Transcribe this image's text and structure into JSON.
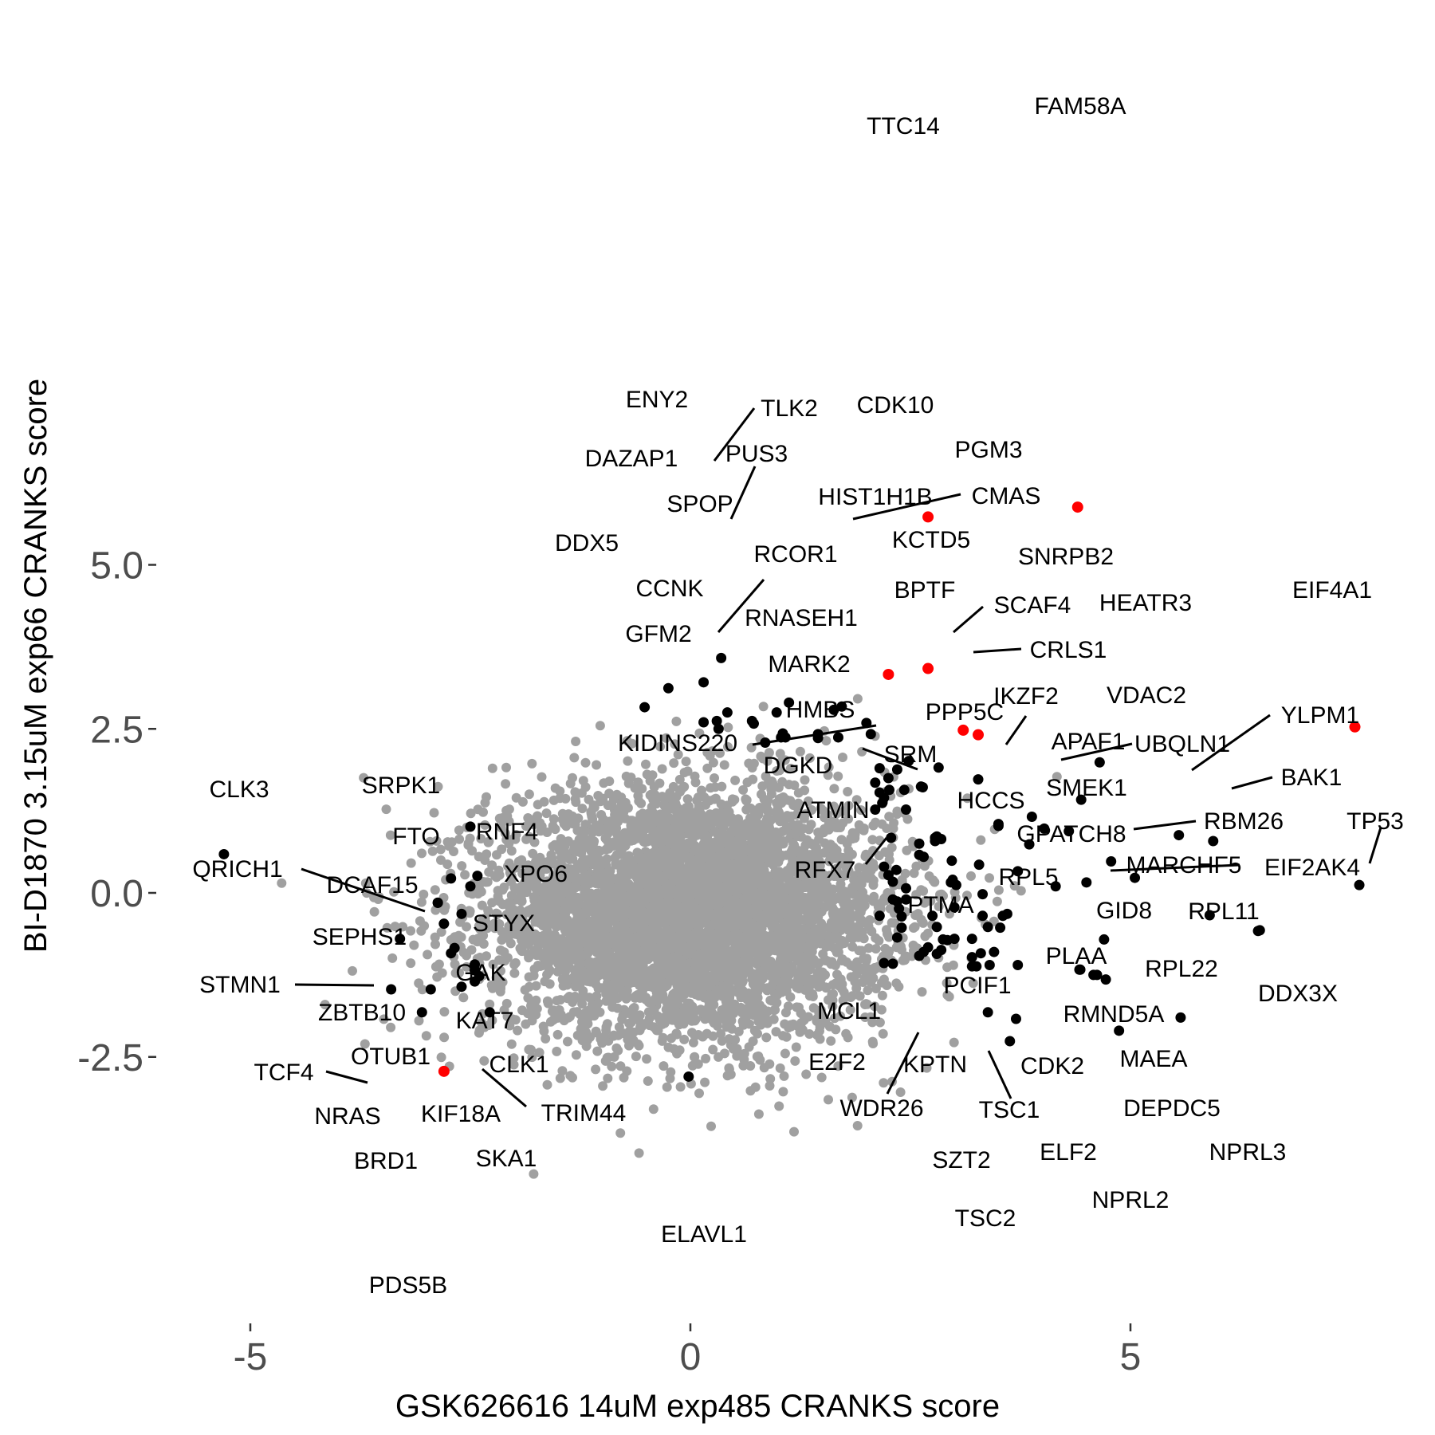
{
  "chart_data": {
    "type": "scatter",
    "xlabel": "GSK626616 14uM exp485 CRANKS score",
    "ylabel": "BI-D1870 3.15uM exp66 CRANKS score",
    "xlim": [
      -6.2,
      8.35
    ],
    "ylim": [
      -3.2,
      6.15
    ],
    "x_ticks": [
      -5,
      0,
      5
    ],
    "x_tick_labels": [
      "-5",
      "0",
      "5"
    ],
    "y_ticks": [
      -2.5,
      0,
      2.5,
      5
    ],
    "y_tick_labels": [
      "-2.5",
      "0.0",
      "2.5",
      "5.0"
    ],
    "grid": false,
    "background_cloud": {
      "description_color": "#a0a0a0",
      "center": [
        0.0,
        -0.3
      ],
      "spread": [
        1.15,
        0.95
      ],
      "count": 5200
    },
    "colors": {
      "background": "#a0a0a0",
      "hit": "#000000",
      "highlight": "#ff0000"
    },
    "highlighted": [
      {
        "label": "FAM58A",
        "x": 4.4,
        "y": 5.88
      },
      {
        "label": "TTC14",
        "x": 2.7,
        "y": 5.73
      },
      {
        "label": "CDK10",
        "x": 2.25,
        "y": 3.33
      },
      {
        "label": "PGM3",
        "x": 2.7,
        "y": 3.42
      },
      {
        "label": "SNRPB2",
        "x": 3.1,
        "y": 2.48
      },
      {
        "label": "",
        "x": 3.27,
        "y": 2.41
      },
      {
        "label": "EIF4A1",
        "x": 7.55,
        "y": 2.53
      },
      {
        "label": "PDS5B",
        "x": -2.8,
        "y": -2.72
      }
    ],
    "labeled_points": [
      {
        "label": "ENY2",
        "x": 0.35,
        "y": 3.58
      },
      {
        "label": "TLK2",
        "x": 0.15,
        "y": 3.21
      },
      {
        "label": "DAZAP1",
        "x": -0.25,
        "y": 3.12
      },
      {
        "label": "PUS3",
        "x": 0.42,
        "y": 2.75
      },
      {
        "label": "SPOP",
        "x": 0.3,
        "y": 2.62
      },
      {
        "label": "DDX5",
        "x": -0.52,
        "y": 2.83
      },
      {
        "label": "HIST1H1B",
        "x": 1.72,
        "y": 2.84
      },
      {
        "label": "CMAS",
        "x": 1.63,
        "y": 2.79
      },
      {
        "label": "KCTD5",
        "x": 2.0,
        "y": 2.59
      },
      {
        "label": "RCOR1",
        "x": 0.7,
        "y": 2.62
      },
      {
        "label": "CCNK",
        "x": 1.08,
        "y": 2.37
      },
      {
        "label": "BPTF",
        "x": 2.48,
        "y": 2.01
      },
      {
        "label": "GFM2",
        "x": 0.85,
        "y": 2.29
      },
      {
        "label": "RNASEH1",
        "x": 1.03,
        "y": 2.37
      },
      {
        "label": "SCAF4",
        "x": 2.82,
        "y": 1.91
      },
      {
        "label": "HEATR3",
        "x": 4.65,
        "y": 1.99
      },
      {
        "label": "CRLS1",
        "x": 3.27,
        "y": 1.73
      },
      {
        "label": "MARK2",
        "x": 2.1,
        "y": 1.68
      },
      {
        "label": "HMBS",
        "x": 2.15,
        "y": 1.53
      },
      {
        "label": "PPP5C",
        "x": 2.64,
        "y": 1.61
      },
      {
        "label": "IKZF2",
        "x": 3.5,
        "y": 1.02
      },
      {
        "label": "VDAC2",
        "x": 4.44,
        "y": 1.42
      },
      {
        "label": "KIDINS220",
        "x": 2.1,
        "y": 1.27
      },
      {
        "label": "DGKD",
        "x": 2.78,
        "y": 0.84
      },
      {
        "label": "SRM",
        "x": 2.78,
        "y": 0.79
      },
      {
        "label": "APAF1",
        "x": 3.88,
        "y": 1.16
      },
      {
        "label": "UBQLN1",
        "x": 4.02,
        "y": 0.98
      },
      {
        "label": "YLPM1",
        "x": 5.55,
        "y": 0.88
      },
      {
        "label": "SMEK1",
        "x": 4.3,
        "y": 0.94
      },
      {
        "label": "BAK1",
        "x": 5.94,
        "y": 0.79
      },
      {
        "label": "HCCS",
        "x": 3.85,
        "y": 0.74
      },
      {
        "label": "ATMIN",
        "x": 2.6,
        "y": 0.58
      },
      {
        "label": "RBM26",
        "x": 4.78,
        "y": 0.48
      },
      {
        "label": "GPATCH8",
        "x": 3.72,
        "y": 0.33
      },
      {
        "label": "TP53",
        "x": 7.6,
        "y": 0.12
      },
      {
        "label": "RFX7",
        "x": 2.25,
        "y": 0.27
      },
      {
        "label": "MARCHF5",
        "x": 5.05,
        "y": 0.23
      },
      {
        "label": "EIF2AK4",
        "x": 4.5,
        "y": 0.16
      },
      {
        "label": "RPL5",
        "x": 4.15,
        "y": 0.1
      },
      {
        "label": "PTMA",
        "x": 2.45,
        "y": -0.1
      },
      {
        "label": "GID8",
        "x": 3.6,
        "y": -0.32
      },
      {
        "label": "RPL11",
        "x": 5.9,
        "y": -0.34
      },
      {
        "label": "PLAA",
        "x": 3.52,
        "y": -0.53
      },
      {
        "label": "RPL22",
        "x": 6.45,
        "y": -0.58
      },
      {
        "label": "DDX3X",
        "x": 6.47,
        "y": -0.57
      },
      {
        "label": "PCIF1",
        "x": 2.8,
        "y": -0.93
      },
      {
        "label": "RMND5A",
        "x": 4.7,
        "y": -0.71
      },
      {
        "label": "MCL1",
        "x": 2.3,
        "y": -1.08
      },
      {
        "label": "E2F2",
        "x": 2.6,
        "y": -0.96
      },
      {
        "label": "KPTN",
        "x": 3.25,
        "y": -1.12
      },
      {
        "label": "CDK2",
        "x": 4.42,
        "y": -1.17
      },
      {
        "label": "MAEA",
        "x": 4.58,
        "y": -1.25
      },
      {
        "label": "WDR26",
        "x": 2.65,
        "y": -0.9
      },
      {
        "label": "TSC1",
        "x": 3.4,
        "y": -1.1
      },
      {
        "label": "DEPDC5",
        "x": 4.72,
        "y": -1.32
      },
      {
        "label": "SZT2",
        "x": 3.38,
        "y": -1.82
      },
      {
        "label": "ELF2",
        "x": 3.7,
        "y": -1.92
      },
      {
        "label": "NPRL3",
        "x": 5.57,
        "y": -1.9
      },
      {
        "label": "TSC2",
        "x": 3.63,
        "y": -2.26
      },
      {
        "label": "NPRL2",
        "x": 4.87,
        "y": -2.1
      },
      {
        "label": "ELAVL1",
        "x": -0.02,
        "y": -2.8
      },
      {
        "label": "CLK3",
        "x": -5.3,
        "y": 0.59
      },
      {
        "label": "SRPK1",
        "x": -2.5,
        "y": 1.01
      },
      {
        "label": "FTO",
        "x": -2.72,
        "y": 0.22
      },
      {
        "label": "RNF4",
        "x": -2.42,
        "y": 0.26
      },
      {
        "label": "QRICH1",
        "x": -2.87,
        "y": -0.15
      },
      {
        "label": "DCAF15",
        "x": -2.87,
        "y": -0.15
      },
      {
        "label": "XPO6",
        "x": -2.5,
        "y": 0.1
      },
      {
        "label": "STYX",
        "x": -2.6,
        "y": -0.32
      },
      {
        "label": "SEPHS1",
        "x": -2.8,
        "y": -0.47
      },
      {
        "label": "GAK",
        "x": -2.68,
        "y": -0.84
      },
      {
        "label": "STMN1",
        "x": -3.3,
        "y": -0.7
      },
      {
        "label": "ZBTB10",
        "x": -2.72,
        "y": -0.92
      },
      {
        "label": "KAT7",
        "x": -2.45,
        "y": -1.09
      },
      {
        "label": "OTUB1",
        "x": -2.45,
        "y": -1.18
      },
      {
        "label": "CLK1",
        "x": -2.45,
        "y": -1.35
      },
      {
        "label": "TCF4",
        "x": -3.4,
        "y": -1.47
      },
      {
        "label": "NRAS",
        "x": -2.95,
        "y": -1.47
      },
      {
        "label": "KIF18A",
        "x": -2.6,
        "y": -1.43
      },
      {
        "label": "TRIM44",
        "x": -2.4,
        "y": -1.27
      },
      {
        "label": "BRD1",
        "x": -3.05,
        "y": -1.82
      },
      {
        "label": "SKA1",
        "x": -2.28,
        "y": -1.82
      }
    ],
    "unlabeled_hits": [
      [
        0.15,
        2.6
      ],
      [
        0.32,
        2.5
      ],
      [
        1.12,
        2.9
      ],
      [
        0.98,
        2.75
      ],
      [
        0.72,
        2.58
      ],
      [
        1.05,
        2.43
      ],
      [
        1.45,
        2.42
      ],
      [
        1.68,
        2.37
      ],
      [
        1.45,
        2.36
      ],
      [
        2.05,
        2.42
      ],
      [
        2.15,
        1.9
      ],
      [
        2.35,
        1.88
      ],
      [
        2.25,
        1.75
      ],
      [
        2.2,
        1.45
      ],
      [
        2.62,
        1.62
      ],
      [
        2.26,
        1.57
      ],
      [
        2.43,
        1.57
      ],
      [
        2.18,
        1.37
      ],
      [
        2.45,
        1.27
      ],
      [
        3.5,
        1.05
      ],
      [
        2.8,
        0.86
      ],
      [
        2.85,
        0.82
      ],
      [
        2.28,
        0.84
      ],
      [
        2.6,
        0.75
      ],
      [
        2.97,
        0.49
      ],
      [
        2.65,
        0.55
      ],
      [
        3.28,
        0.43
      ],
      [
        2.2,
        0.4
      ],
      [
        2.34,
        0.35
      ],
      [
        2.98,
        0.2
      ],
      [
        2.96,
        0.16
      ],
      [
        2.3,
        0.17
      ],
      [
        3.02,
        0.12
      ],
      [
        2.45,
        0.07
      ],
      [
        3.32,
        -0.02
      ],
      [
        2.3,
        -0.1
      ],
      [
        2.35,
        -0.13
      ],
      [
        2.37,
        -0.24
      ],
      [
        3.0,
        -0.22
      ],
      [
        2.4,
        -0.36
      ],
      [
        2.15,
        -0.35
      ],
      [
        2.75,
        -0.35
      ],
      [
        3.32,
        -0.35
      ],
      [
        3.55,
        -0.35
      ],
      [
        2.4,
        -0.53
      ],
      [
        2.8,
        -0.52
      ],
      [
        3.38,
        -0.52
      ],
      [
        2.35,
        -0.68
      ],
      [
        2.87,
        -0.71
      ],
      [
        2.92,
        -0.72
      ],
      [
        3.2,
        -0.7
      ],
      [
        2.7,
        -0.83
      ],
      [
        3.3,
        -0.92
      ],
      [
        3.45,
        -0.9
      ],
      [
        3.72,
        -1.1
      ],
      [
        3.2,
        -0.98
      ],
      [
        3.2,
        -1.12
      ],
      [
        2.2,
        -1.07
      ],
      [
        4.43,
        -1.17
      ],
      [
        4.62,
        -1.25
      ],
      [
        2.85,
        -0.87
      ],
      [
        3.0,
        -0.7
      ]
    ]
  }
}
